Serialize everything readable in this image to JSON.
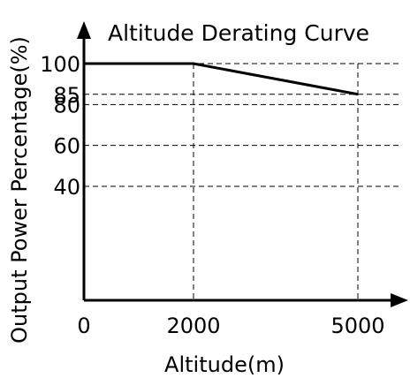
{
  "chart_data": {
    "type": "line",
    "title": "Altitude Derating Curve",
    "xlabel": "Altitude(m)",
    "ylabel": "Output Power Percentage(%)",
    "x_ticks": [
      {
        "value": 0,
        "label": "0"
      },
      {
        "value": 2000,
        "label": "2000"
      },
      {
        "value": 5000,
        "label": "5000"
      }
    ],
    "y_ticks": [
      {
        "value": 100,
        "label": "100"
      },
      {
        "value": 85,
        "label": "85"
      },
      {
        "value": 80,
        "label": "80"
      },
      {
        "value": 60,
        "label": "60"
      },
      {
        "value": 40,
        "label": "40"
      }
    ],
    "series": [
      {
        "x": [
          0,
          2000,
          5000
        ],
        "y": [
          100,
          100,
          85
        ]
      }
    ],
    "grid": "dashed guide lines at labeled ticks",
    "colors": {
      "line": "#000000",
      "axis": "#000000",
      "grid": "#000000",
      "background": "#ffffff"
    }
  }
}
